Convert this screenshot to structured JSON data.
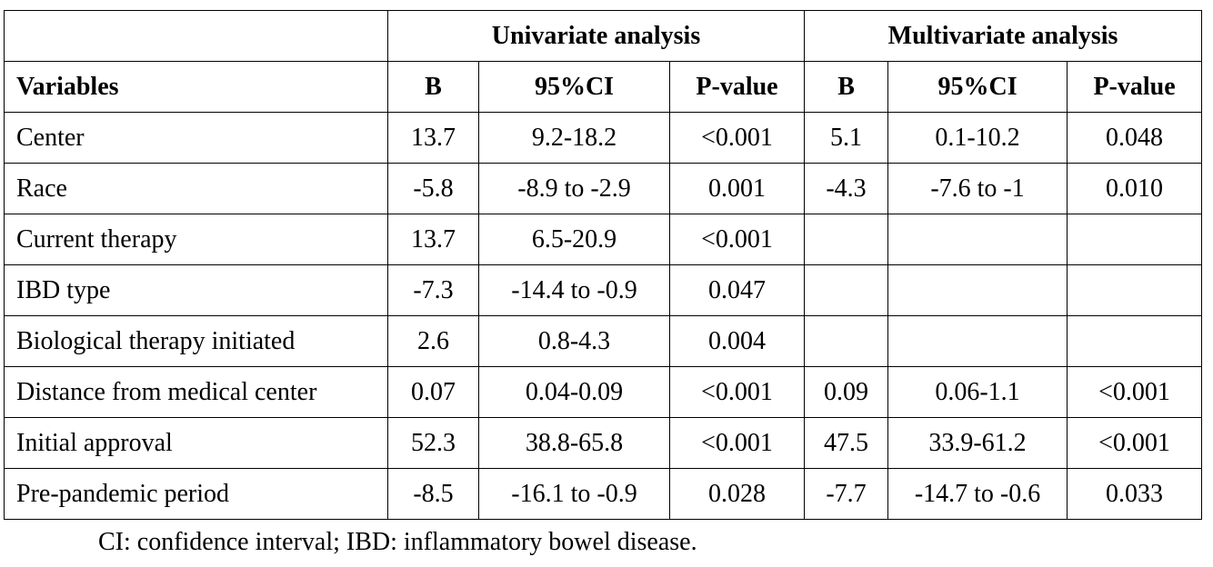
{
  "table": {
    "group_headers": [
      "",
      "Univariate analysis",
      "Multivariate analysis"
    ],
    "column_headers": [
      "Variables",
      "B",
      "95%CI",
      "P-value",
      "B",
      "95%CI",
      "P-value"
    ],
    "rows": [
      [
        "Center",
        "13.7",
        "9.2-18.2",
        "<0.001",
        "5.1",
        "0.1-10.2",
        "0.048"
      ],
      [
        "Race",
        "-5.8",
        "-8.9 to -2.9",
        "0.001",
        "-4.3",
        "-7.6 to -1",
        "0.010"
      ],
      [
        "Current therapy",
        "13.7",
        "6.5-20.9",
        "<0.001",
        "",
        "",
        ""
      ],
      [
        "IBD type",
        "-7.3",
        "-14.4 to -0.9",
        "0.047",
        "",
        "",
        ""
      ],
      [
        "Biological therapy initiated",
        "2.6",
        "0.8-4.3",
        "0.004",
        "",
        "",
        ""
      ],
      [
        "Distance from medical center",
        "0.07",
        "0.04-0.09",
        "<0.001",
        "0.09",
        "0.06-1.1",
        "<0.001"
      ],
      [
        "Initial approval",
        "52.3",
        "38.8-65.8",
        "<0.001",
        "47.5",
        "33.9-61.2",
        "<0.001"
      ],
      [
        "Pre-pandemic period",
        "-8.5",
        "-16.1 to -0.9",
        "0.028",
        "-7.7",
        "-14.7 to -0.6",
        "0.033"
      ]
    ]
  },
  "footnote": "CI: confidence interval; IBD: inflammatory bowel disease."
}
